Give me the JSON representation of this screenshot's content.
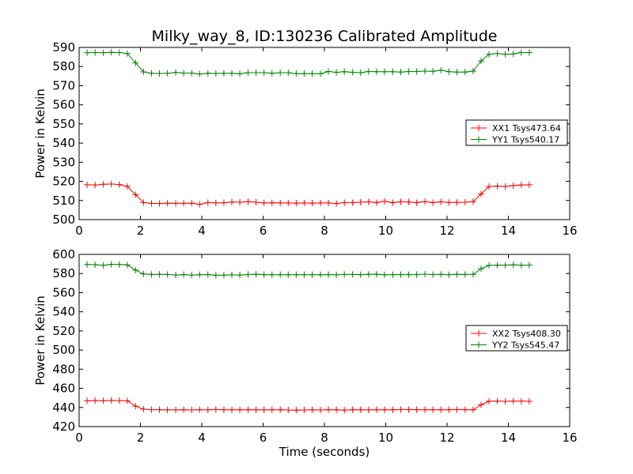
{
  "figure": {
    "title": "Milky_way_8, ID:130236 Calibrated Amplitude",
    "background": "#ffffff"
  },
  "chart_data": [
    {
      "type": "line",
      "title": "Milky_way_8, ID:130236 Calibrated Amplitude",
      "xlabel": "",
      "ylabel": "Power in Kelvin",
      "xlim": [
        0,
        16
      ],
      "ylim": [
        500,
        590
      ],
      "xticks": [
        0,
        2,
        4,
        6,
        8,
        10,
        12,
        14,
        16
      ],
      "yticks": [
        500,
        510,
        520,
        530,
        540,
        550,
        560,
        570,
        580,
        590
      ],
      "grid": false,
      "legend_position": "right-middle",
      "x": [
        0.26,
        0.52,
        0.79,
        1.05,
        1.31,
        1.57,
        1.84,
        2.1,
        2.36,
        2.62,
        2.88,
        3.15,
        3.41,
        3.67,
        3.93,
        4.2,
        4.46,
        4.72,
        4.98,
        5.24,
        5.51,
        5.77,
        6.03,
        6.29,
        6.56,
        6.82,
        7.08,
        7.34,
        7.6,
        7.87,
        8.13,
        8.39,
        8.65,
        8.92,
        9.18,
        9.44,
        9.7,
        9.96,
        10.23,
        10.49,
        10.75,
        11.01,
        11.28,
        11.54,
        11.8,
        12.06,
        12.32,
        12.59,
        12.85,
        13.11,
        13.37,
        13.64,
        13.9,
        14.16,
        14.42,
        14.68
      ],
      "series": [
        {
          "name": "XX1 Tsys473.64",
          "color": "#ff0000",
          "values": [
            518.2,
            518.1,
            518.5,
            518.6,
            518.3,
            517.4,
            513.0,
            508.9,
            508.5,
            508.4,
            508.6,
            508.5,
            508.5,
            508.6,
            508.0,
            508.9,
            508.7,
            508.8,
            509.2,
            509.1,
            509.4,
            509.1,
            508.7,
            508.8,
            508.7,
            508.7,
            508.6,
            508.7,
            508.6,
            508.7,
            508.7,
            508.4,
            508.9,
            508.9,
            509.1,
            509.3,
            508.9,
            509.5,
            508.9,
            509.3,
            509.2,
            508.9,
            509.4,
            508.9,
            509.3,
            509.0,
            509.0,
            509.1,
            509.4,
            513.4,
            517.3,
            517.5,
            517.3,
            517.8,
            518.1,
            518.2
          ]
        },
        {
          "name": "YY1 Tsys540.17",
          "color": "#008000",
          "values": [
            587.2,
            587.3,
            587.2,
            587.4,
            587.3,
            586.8,
            581.9,
            577.2,
            576.5,
            576.4,
            576.5,
            576.9,
            576.6,
            576.6,
            576.1,
            576.5,
            576.4,
            576.5,
            576.5,
            576.2,
            576.8,
            576.8,
            576.8,
            576.5,
            576.8,
            576.8,
            576.3,
            576.3,
            576.3,
            576.2,
            577.4,
            577.0,
            577.3,
            577.0,
            576.8,
            577.4,
            577.3,
            577.3,
            577.3,
            577.1,
            577.4,
            577.4,
            577.6,
            577.5,
            578.1,
            577.3,
            577.1,
            577.1,
            577.6,
            582.9,
            586.4,
            586.8,
            586.4,
            586.6,
            587.3,
            587.3
          ]
        }
      ]
    },
    {
      "type": "line",
      "title": "",
      "xlabel": "Time (seconds)",
      "ylabel": "Power in Kelvin",
      "xlim": [
        0,
        16
      ],
      "ylim": [
        420,
        600
      ],
      "xticks": [
        0,
        2,
        4,
        6,
        8,
        10,
        12,
        14,
        16
      ],
      "yticks": [
        420,
        440,
        460,
        480,
        500,
        520,
        540,
        560,
        580,
        600
      ],
      "grid": false,
      "legend_position": "right-middle",
      "x": [
        0.26,
        0.52,
        0.79,
        1.05,
        1.31,
        1.57,
        1.84,
        2.1,
        2.36,
        2.62,
        2.88,
        3.15,
        3.41,
        3.67,
        3.93,
        4.2,
        4.46,
        4.72,
        4.98,
        5.24,
        5.51,
        5.77,
        6.03,
        6.29,
        6.56,
        6.82,
        7.08,
        7.34,
        7.6,
        7.87,
        8.13,
        8.39,
        8.65,
        8.92,
        9.18,
        9.44,
        9.7,
        9.96,
        10.23,
        10.49,
        10.75,
        11.01,
        11.28,
        11.54,
        11.8,
        12.06,
        12.32,
        12.59,
        12.85,
        13.11,
        13.37,
        13.64,
        13.9,
        14.16,
        14.42,
        14.68
      ],
      "series": [
        {
          "name": "XX2 Tsys408.30",
          "color": "#ff0000",
          "values": [
            447.0,
            447.2,
            447.0,
            447.4,
            447.2,
            446.9,
            441.4,
            438.3,
            437.7,
            437.6,
            437.4,
            437.4,
            437.6,
            437.3,
            437.6,
            437.4,
            437.8,
            437.5,
            437.5,
            437.5,
            437.5,
            437.5,
            437.4,
            437.6,
            437.6,
            437.3,
            437.1,
            437.3,
            437.5,
            437.3,
            437.6,
            437.5,
            437.2,
            437.6,
            437.5,
            437.4,
            437.6,
            437.5,
            437.5,
            437.8,
            437.8,
            437.7,
            437.6,
            437.6,
            437.6,
            437.5,
            437.8,
            437.6,
            437.5,
            442.7,
            446.5,
            446.6,
            446.4,
            446.6,
            446.6,
            446.4
          ]
        },
        {
          "name": "YY2 Tsys545.47",
          "color": "#008000",
          "values": [
            589.5,
            589.2,
            588.6,
            589.6,
            589.5,
            589.0,
            583.6,
            579.6,
            579.0,
            579.1,
            579.0,
            578.4,
            578.9,
            578.4,
            578.7,
            578.9,
            578.2,
            578.2,
            578.6,
            578.4,
            578.9,
            579.3,
            578.8,
            578.7,
            578.8,
            578.8,
            578.8,
            578.8,
            578.8,
            578.7,
            578.9,
            578.6,
            579.0,
            579.0,
            578.8,
            579.1,
            579.3,
            578.7,
            578.8,
            578.9,
            578.8,
            578.9,
            579.4,
            578.9,
            579.1,
            578.8,
            579.1,
            579.0,
            579.0,
            585.0,
            588.5,
            588.7,
            588.8,
            589.2,
            588.7,
            588.8
          ]
        }
      ]
    }
  ]
}
